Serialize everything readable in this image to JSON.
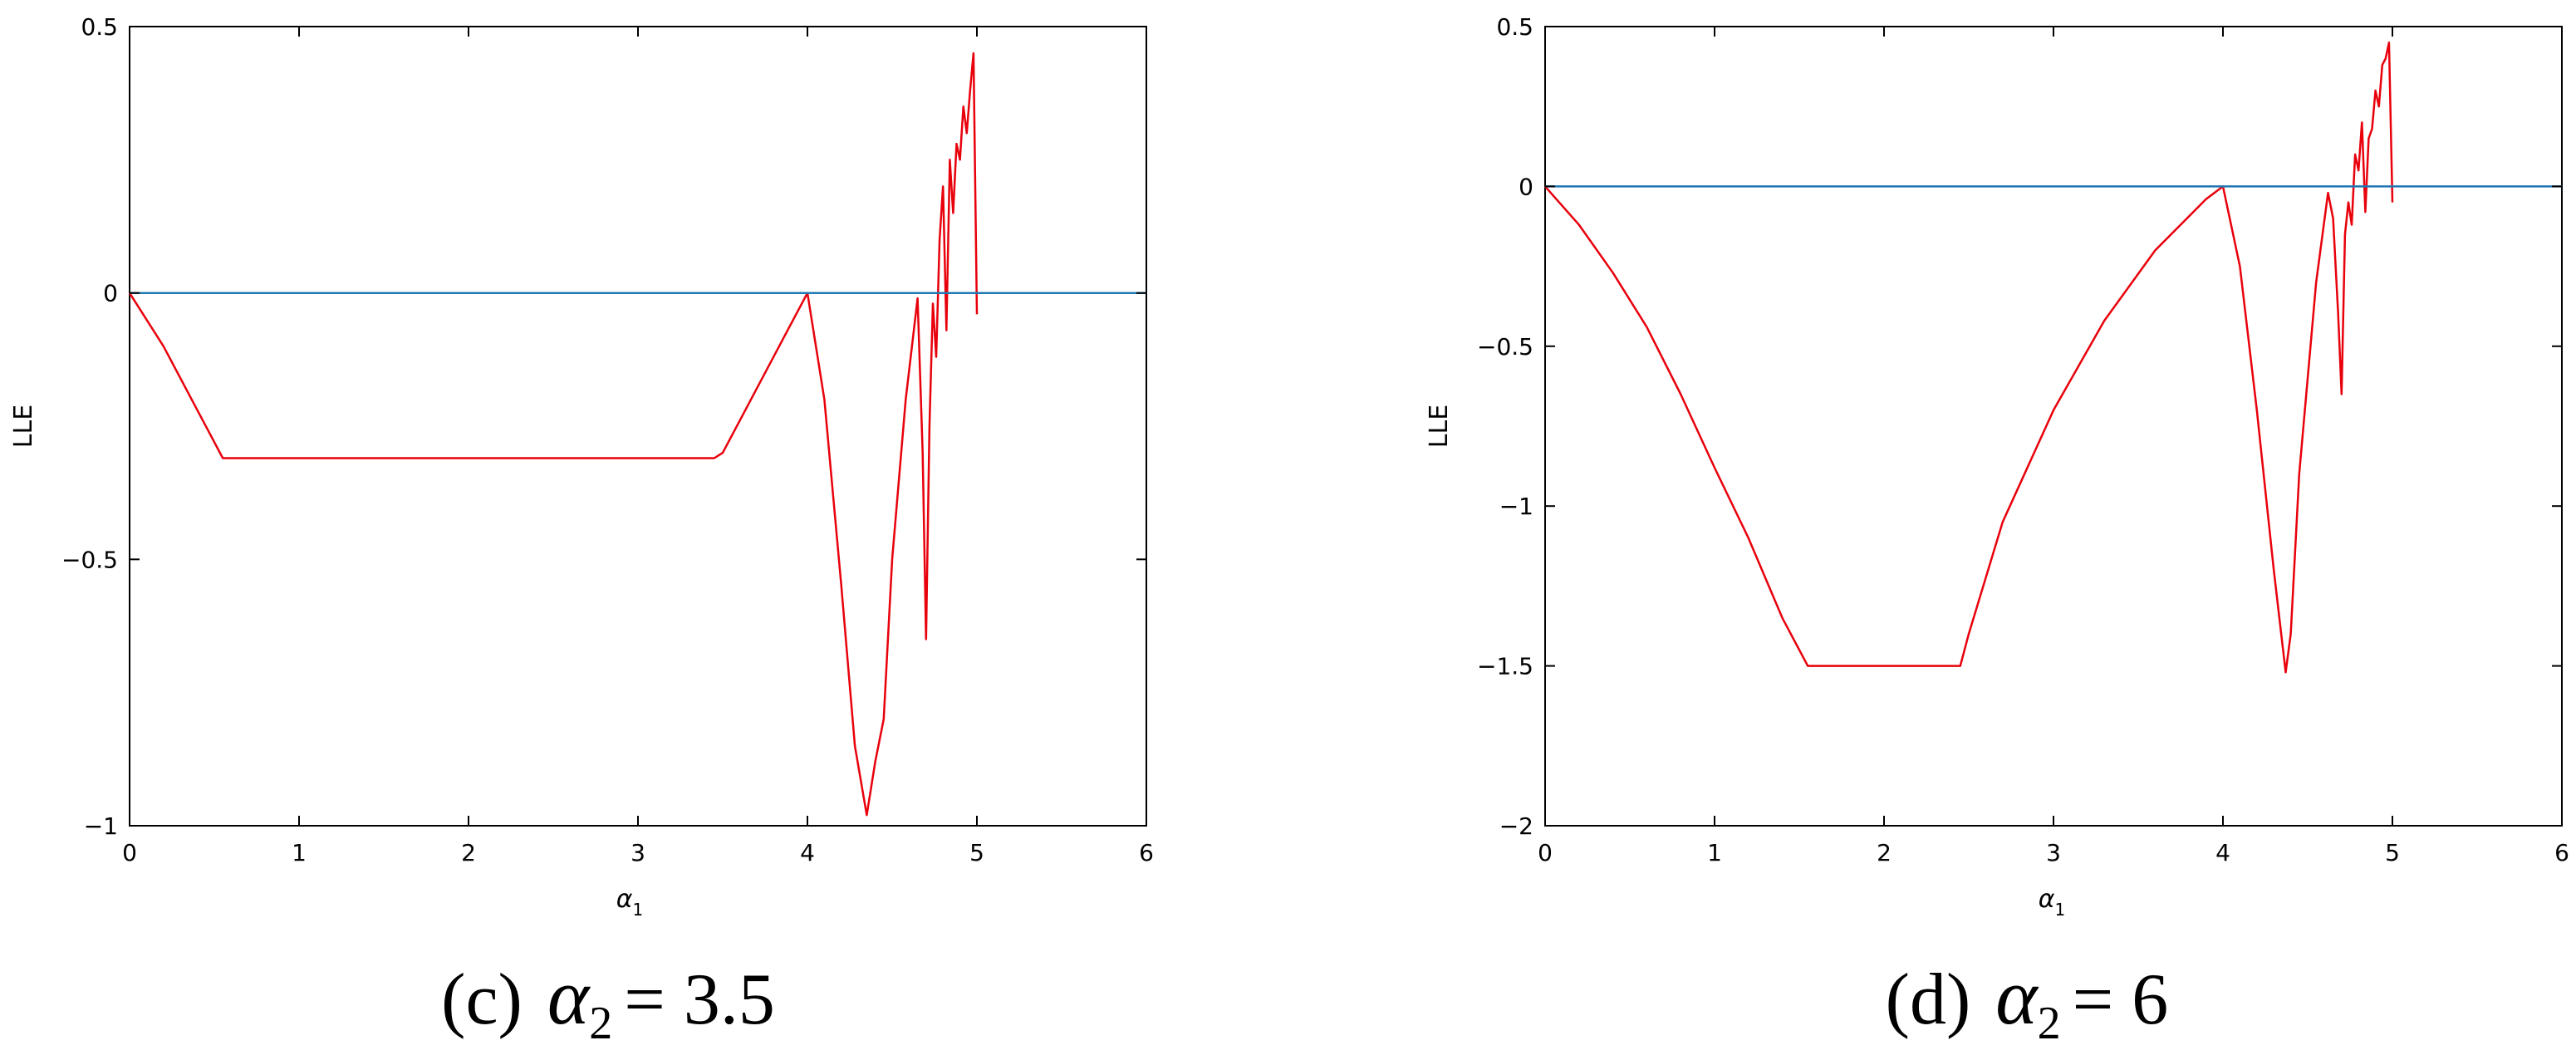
{
  "chart_data": [
    {
      "type": "line",
      "xlabel": "α",
      "xlabel_sub": "1",
      "ylabel": "LLE",
      "xlim": [
        0,
        6
      ],
      "ylim": [
        -1,
        0.5
      ],
      "xticks": [
        "0",
        "1",
        "2",
        "3",
        "4",
        "5",
        "6"
      ],
      "yticks": [
        "−1",
        "−0.5",
        "0",
        "0.5"
      ],
      "grid": false,
      "caption": {
        "label": "(c)",
        "symbol": "α",
        "sub": "2",
        "rest": "= 3.5"
      },
      "series": [
        {
          "color": "#e8000b",
          "x": [
            0,
            0.2,
            0.4,
            0.55,
            0.6,
            1.0,
            2.0,
            3.0,
            3.45,
            3.5,
            3.7,
            3.9,
            4.0,
            4.1,
            4.2,
            4.28,
            4.35,
            4.4,
            4.45,
            4.5,
            4.58,
            4.65,
            4.68,
            4.7,
            4.72,
            4.74,
            4.76,
            4.78,
            4.8,
            4.82,
            4.84,
            4.86,
            4.88,
            4.9,
            4.92,
            4.94,
            4.96,
            4.98,
            5.0
          ],
          "y": [
            0,
            -0.1,
            -0.22,
            -0.31,
            -0.31,
            -0.31,
            -0.31,
            -0.31,
            -0.31,
            -0.3,
            -0.18,
            -0.06,
            0,
            -0.2,
            -0.55,
            -0.85,
            -0.98,
            -0.88,
            -0.8,
            -0.5,
            -0.2,
            -0.01,
            -0.3,
            -0.65,
            -0.25,
            -0.02,
            -0.12,
            0.1,
            0.2,
            -0.07,
            0.25,
            0.15,
            0.28,
            0.25,
            0.35,
            0.3,
            0.38,
            0.45,
            -0.04
          ]
        },
        {
          "color": "#1f77b4",
          "x": [
            0,
            6
          ],
          "y": [
            0,
            0
          ]
        }
      ]
    },
    {
      "type": "line",
      "xlabel": "α",
      "xlabel_sub": "1",
      "ylabel": "LLE",
      "xlim": [
        0,
        6
      ],
      "ylim": [
        -2,
        0.5
      ],
      "xticks": [
        "0",
        "1",
        "2",
        "3",
        "4",
        "5",
        "6"
      ],
      "yticks": [
        "−2",
        "−1.5",
        "−1",
        "−0.5",
        "0",
        "0.5"
      ],
      "grid": false,
      "caption": {
        "label": "(d)",
        "symbol": "α",
        "sub": "2",
        "rest": "= 6"
      },
      "series": [
        {
          "color": "#e8000b",
          "x": [
            0,
            0.2,
            0.4,
            0.6,
            0.8,
            1.0,
            1.2,
            1.4,
            1.55,
            1.6,
            2.0,
            2.45,
            2.5,
            2.7,
            3.0,
            3.3,
            3.6,
            3.9,
            4.0,
            4.1,
            4.2,
            4.3,
            4.37,
            4.4,
            4.45,
            4.55,
            4.62,
            4.65,
            4.68,
            4.7,
            4.72,
            4.74,
            4.76,
            4.78,
            4.8,
            4.82,
            4.84,
            4.86,
            4.88,
            4.9,
            4.92,
            4.94,
            4.96,
            4.98,
            5.0
          ],
          "y": [
            0,
            -0.12,
            -0.27,
            -0.44,
            -0.65,
            -0.88,
            -1.1,
            -1.35,
            -1.5,
            -1.5,
            -1.5,
            -1.5,
            -1.4,
            -1.05,
            -0.7,
            -0.42,
            -0.2,
            -0.04,
            0,
            -0.25,
            -0.7,
            -1.2,
            -1.52,
            -1.4,
            -0.9,
            -0.3,
            -0.02,
            -0.1,
            -0.4,
            -0.65,
            -0.15,
            -0.05,
            -0.12,
            0.1,
            0.05,
            0.2,
            -0.08,
            0.15,
            0.18,
            0.3,
            0.25,
            0.38,
            0.4,
            0.45,
            -0.05
          ]
        },
        {
          "color": "#1f77b4",
          "x": [
            0,
            6
          ],
          "y": [
            0,
            0
          ]
        }
      ]
    }
  ]
}
